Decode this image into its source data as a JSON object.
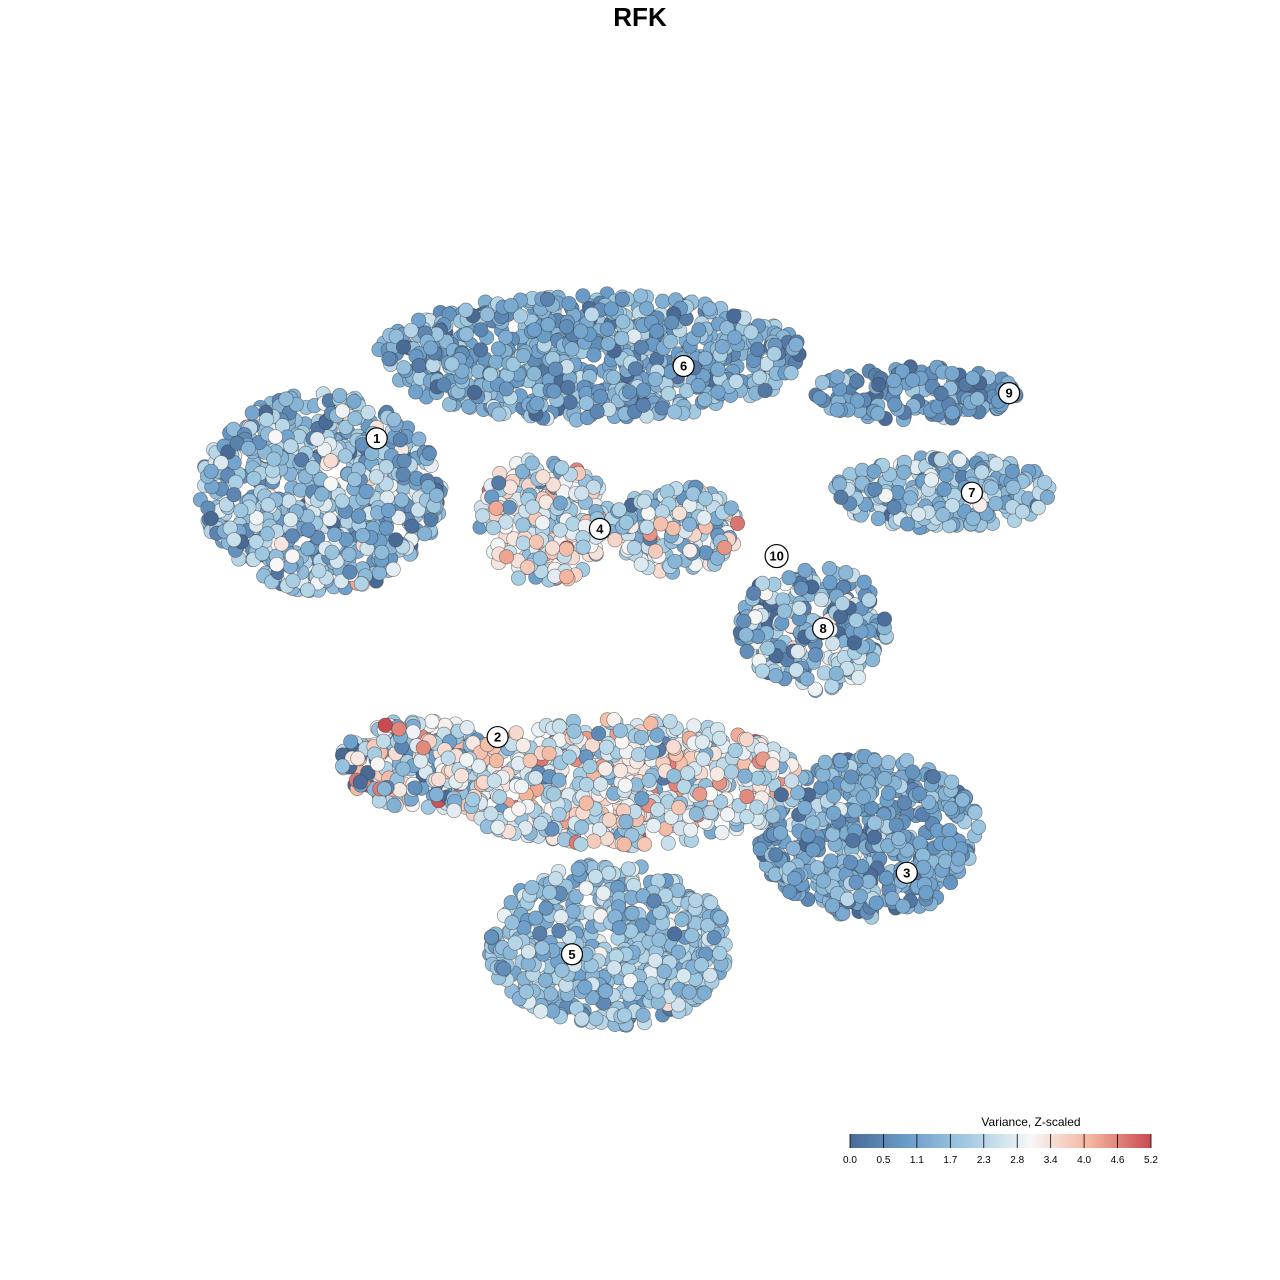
{
  "chart_data": {
    "type": "scatter",
    "title": "RFK",
    "xlabel": "",
    "ylabel": "",
    "xlim": [
      0,
      100
    ],
    "ylim": [
      0,
      100
    ],
    "grid": false,
    "axes_visible": false,
    "legend": {
      "title": "Variance, Z-scaled",
      "placement": "bottom-right",
      "range": [
        0.0,
        5.2
      ],
      "ticks": [
        "0.0",
        "0.5",
        "1.1",
        "1.7",
        "2.3",
        "2.8",
        "3.4",
        "4.0",
        "4.6",
        "5.2"
      ],
      "colors": [
        "#4a6a96",
        "#6d9fcb",
        "#a6cde3",
        "#f7f7f7",
        "#f4b49c",
        "#c84a52"
      ]
    },
    "clusters": [
      {
        "id": "1",
        "x": 13,
        "y": 66,
        "rx": 13,
        "ry": 11,
        "mean": 1.7,
        "sd": 0.8
      },
      {
        "id": "2",
        "x": 24,
        "y": 36,
        "rx": 9,
        "ry": 5,
        "mean": 2.0,
        "sd": 1.4
      },
      {
        "id": "3",
        "x": 72,
        "y": 28,
        "rx": 12,
        "ry": 9,
        "mean": 1.3,
        "sd": 0.6
      },
      {
        "id": "4",
        "x": 37,
        "y": 63,
        "rx": 7,
        "ry": 7,
        "mean": 2.8,
        "sd": 1.0
      },
      {
        "id": "5",
        "x": 44,
        "y": 16,
        "rx": 13,
        "ry": 9,
        "mean": 1.8,
        "sd": 0.6
      },
      {
        "id": "6",
        "x": 42,
        "y": 81,
        "rx": 23,
        "ry": 7,
        "mean": 1.3,
        "sd": 0.6
      },
      {
        "id": "7",
        "x": 80,
        "y": 66,
        "rx": 12,
        "ry": 4,
        "mean": 1.8,
        "sd": 0.7
      },
      {
        "id": "8",
        "x": 66,
        "y": 51,
        "rx": 8,
        "ry": 7,
        "mean": 1.5,
        "sd": 1.0
      },
      {
        "id": "9",
        "x": 77,
        "y": 77,
        "rx": 11,
        "ry": 3,
        "mean": 1.0,
        "sd": 0.6
      },
      {
        "id": "10",
        "x": 51,
        "y": 62,
        "rx": 7,
        "ry": 5,
        "mean": 2.4,
        "sd": 0.9
      },
      {
        "id": "",
        "x": 45,
        "y": 34,
        "rx": 20,
        "ry": 7,
        "mean": 2.8,
        "sd": 0.9
      }
    ],
    "label_positions": [
      {
        "id": "1",
        "x": 19,
        "y": 72
      },
      {
        "id": "2",
        "x": 32,
        "y": 39
      },
      {
        "id": "3",
        "x": 76,
        "y": 24
      },
      {
        "id": "4",
        "x": 43,
        "y": 62
      },
      {
        "id": "5",
        "x": 40,
        "y": 15
      },
      {
        "id": "6",
        "x": 52,
        "y": 80
      },
      {
        "id": "7",
        "x": 83,
        "y": 66
      },
      {
        "id": "8",
        "x": 67,
        "y": 51
      },
      {
        "id": "9",
        "x": 87,
        "y": 77
      },
      {
        "id": "10",
        "x": 62,
        "y": 59
      }
    ]
  }
}
